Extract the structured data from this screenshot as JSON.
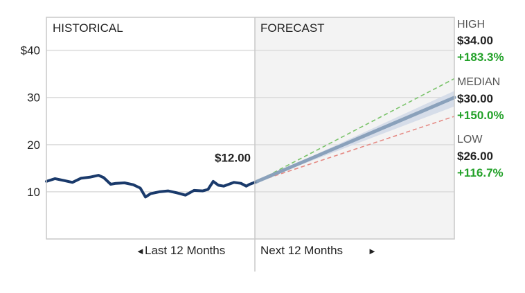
{
  "chart_data": {
    "type": "line",
    "title": "",
    "xlabel": "",
    "ylabel": "",
    "ylim": [
      0,
      47
    ],
    "y_ticks": [
      {
        "value": 40,
        "label": "$40"
      },
      {
        "value": 30,
        "label": "30"
      },
      {
        "value": 20,
        "label": "20"
      },
      {
        "value": 10,
        "label": "10"
      }
    ],
    "grid": true,
    "sections": {
      "historical_label": "HISTORICAL",
      "forecast_label": "FORECAST"
    },
    "x_labels": {
      "past": "Last 12 Months",
      "future": "Next 12 Months"
    },
    "x_range_months": [
      -12,
      12
    ],
    "current_price": {
      "value": 12.0,
      "label": "$12.00"
    },
    "series": [
      {
        "name": "",
        "color": "#1a3a6b",
        "points": [
          [
            -12.0,
            12.2
          ],
          [
            -11.5,
            12.8
          ],
          [
            -11.0,
            12.4
          ],
          [
            -10.5,
            12.0
          ],
          [
            -10.0,
            12.9
          ],
          [
            -9.5,
            13.1
          ],
          [
            -9.0,
            13.5
          ],
          [
            -8.7,
            13.0
          ],
          [
            -8.3,
            11.6
          ],
          [
            -8.0,
            11.8
          ],
          [
            -7.5,
            11.9
          ],
          [
            -7.0,
            11.5
          ],
          [
            -6.6,
            10.8
          ],
          [
            -6.3,
            8.9
          ],
          [
            -6.0,
            9.6
          ],
          [
            -5.5,
            10.0
          ],
          [
            -5.0,
            10.2
          ],
          [
            -4.5,
            9.8
          ],
          [
            -4.0,
            9.3
          ],
          [
            -3.5,
            10.3
          ],
          [
            -3.0,
            10.2
          ],
          [
            -2.7,
            10.5
          ],
          [
            -2.4,
            12.2
          ],
          [
            -2.1,
            11.4
          ],
          [
            -1.8,
            11.2
          ],
          [
            -1.5,
            11.6
          ],
          [
            -1.2,
            12.0
          ],
          [
            -0.8,
            11.8
          ],
          [
            -0.5,
            11.2
          ],
          [
            -0.3,
            11.6
          ],
          [
            0.0,
            12.0
          ]
        ]
      }
    ],
    "forecast": {
      "end_month": 12,
      "high": {
        "value": 34.0,
        "label": "HIGH",
        "value_label": "$34.00",
        "change_label": "+183.3%",
        "color": "#7ac36a"
      },
      "median": {
        "value": 30.0,
        "label": "MEDIAN",
        "value_label": "$30.00",
        "change_label": "+150.0%",
        "color": "#8aa1bb"
      },
      "low": {
        "value": 26.0,
        "label": "LOW",
        "value_label": "$26.00",
        "change_label": "+116.7%",
        "color": "#e58a84"
      },
      "band_top": 31.4,
      "band_bottom": 28.1
    },
    "colors": {
      "grid": "#dcdcdc",
      "forecast_bg": "#f3f3f3",
      "band_fill": "#d6dde9",
      "divider": "#c8c8c8",
      "change_text": "#22a128",
      "text": "#222222",
      "muted_text": "#555555"
    }
  }
}
